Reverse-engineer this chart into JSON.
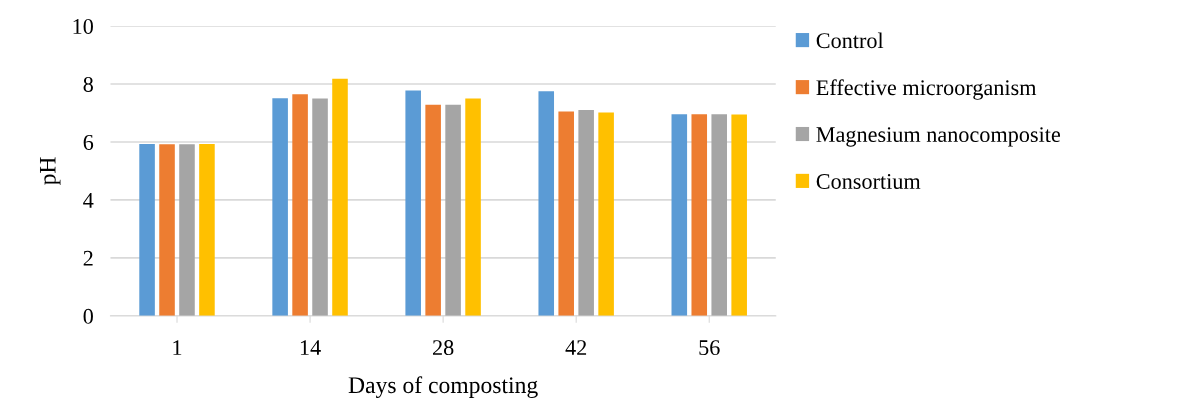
{
  "chart_data": {
    "type": "bar",
    "xlabel": "Days of composting",
    "ylabel": "pH",
    "categories": [
      "1",
      "14",
      "28",
      "42",
      "56"
    ],
    "series": [
      {
        "name": "Control",
        "color": "#5b9bd5",
        "values": [
          5.93,
          7.51,
          7.78,
          7.75,
          6.96
        ]
      },
      {
        "name": "Effective microorganism",
        "color": "#ed7d31",
        "values": [
          5.92,
          7.65,
          7.28,
          7.05,
          6.96
        ]
      },
      {
        "name": "Magnesium nanocomposite",
        "color": "#a5a5a5",
        "values": [
          5.92,
          7.5,
          7.28,
          7.1,
          6.96
        ]
      },
      {
        "name": "Consortium",
        "color": "#ffc000",
        "values": [
          5.93,
          8.18,
          7.5,
          7.02,
          6.95
        ]
      }
    ],
    "ylim": [
      0,
      10
    ],
    "yticks": [
      0,
      2,
      4,
      6,
      8,
      10
    ],
    "grid": "y",
    "legend": "right"
  }
}
